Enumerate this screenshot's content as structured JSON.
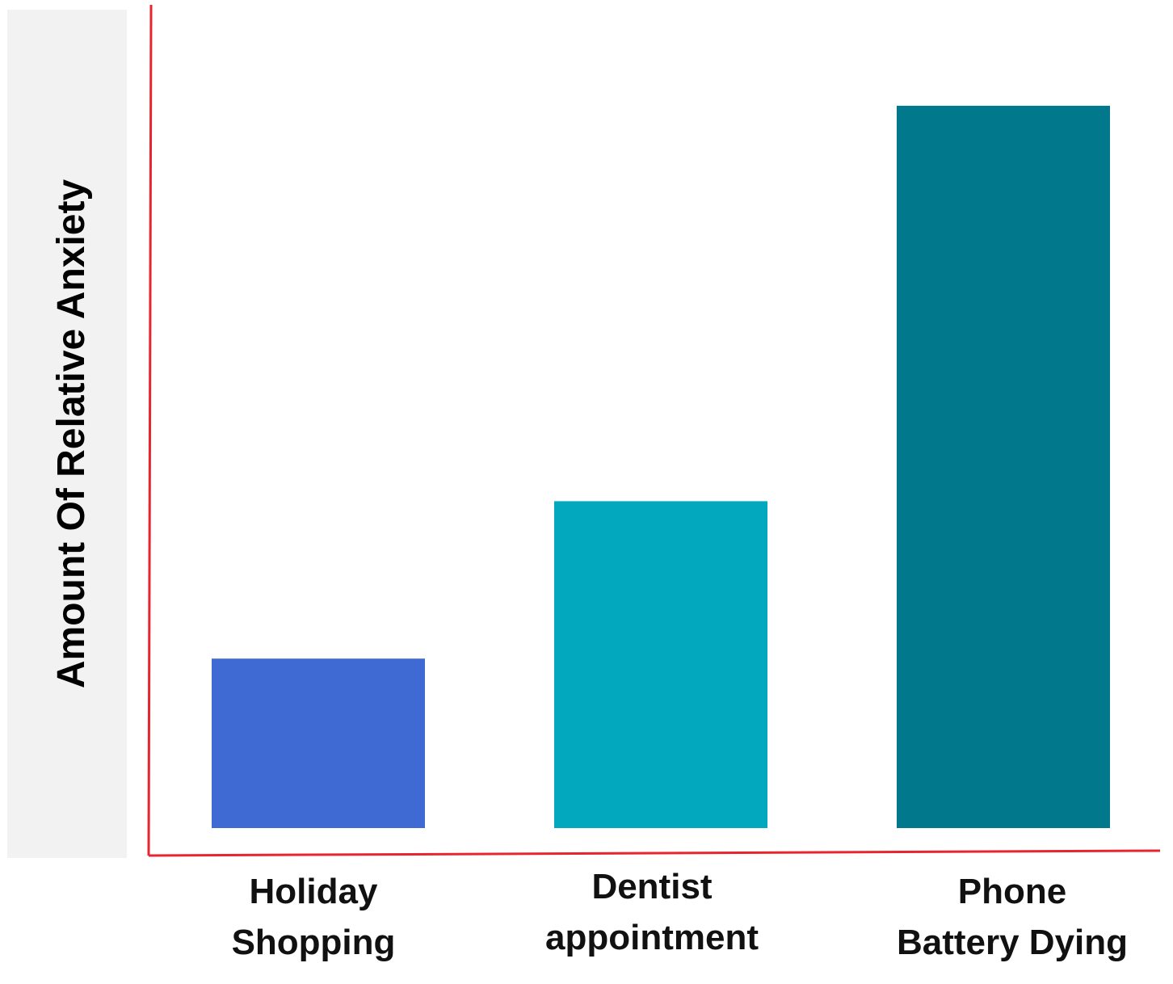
{
  "chart_data": {
    "type": "bar",
    "title": "",
    "xlabel": "",
    "ylabel": "Amount Of Relative Anxiety",
    "categories": [
      [
        "Holiday",
        "Shopping"
      ],
      [
        "Dentist",
        "appointment"
      ],
      [
        "Phone",
        "Battery Dying"
      ]
    ],
    "values": [
      21,
      40.5,
      89.5
    ],
    "ylim": [
      0,
      100
    ],
    "colors": [
      "#3f69d3",
      "#02a8bd",
      "#02788c"
    ],
    "axis_color": "#e8242f",
    "ylabel_band_color": "#f2f2f2",
    "grid": false,
    "legend": "none",
    "tick_labels": false
  }
}
